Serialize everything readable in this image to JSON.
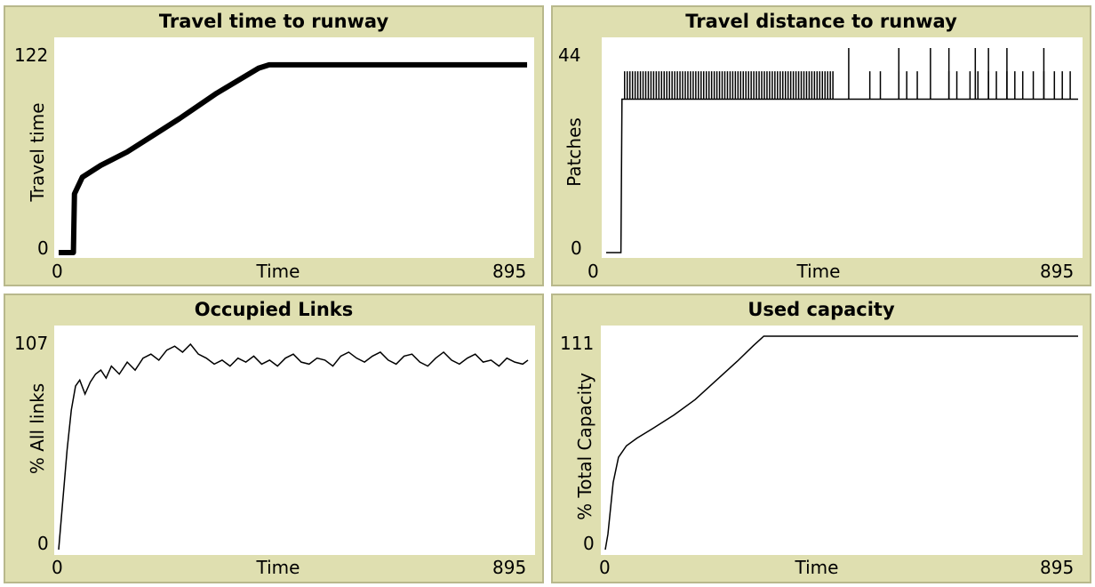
{
  "chart_data": [
    {
      "type": "line",
      "title": "Travel time to runway",
      "xlabel": "Time",
      "ylabel": "Travel time",
      "xlim": [
        0,
        895
      ],
      "ylim": [
        0,
        122
      ],
      "x_ticks": [
        "0",
        "895"
      ],
      "y_ticks": [
        "0",
        "122"
      ],
      "grid": false,
      "series": [
        {
          "color": "#000000",
          "band": 3,
          "x": [
            0,
            20,
            28,
            30,
            45,
            80,
            130,
            180,
            230,
            300,
            380,
            400,
            430,
            470,
            560,
            640,
            680,
            715,
            760,
            800,
            850,
            890
          ],
          "y": [
            0,
            0,
            0,
            35,
            45,
            52,
            60,
            70,
            80,
            95,
            110,
            112,
            112,
            112,
            112,
            112,
            112,
            112,
            112,
            112,
            112,
            112
          ]
        }
      ]
    },
    {
      "type": "line",
      "title": "Travel distance to runway",
      "xlabel": "Time",
      "ylabel": "Patches",
      "xlim": [
        0,
        895
      ],
      "ylim": [
        0,
        44
      ],
      "x_ticks": [
        "0",
        "895"
      ],
      "y_ticks": [
        "0",
        "44"
      ],
      "grid": false,
      "series": [
        {
          "color": "#000000",
          "x": [
            0,
            25,
            28,
            30,
            895
          ],
          "y": [
            0,
            0,
            0,
            33,
            33
          ],
          "spikes": [
            {
              "x": [
                35,
                430
              ],
              "y": 39,
              "step": 5
            },
            {
              "x": [
                490,
                895
              ],
              "y": 39,
              "positions": [
                500,
                520,
                555,
                570,
                590,
                650,
                665,
                690,
                705,
                725,
                740,
                760,
                775,
                790,
                810,
                830,
                850,
                865,
                880
              ]
            },
            {
              "x": [
                460,
                895
              ],
              "y": 44,
              "positions": [
                460,
                555,
                615,
                650,
                700,
                725,
                760,
                830
              ]
            }
          ]
        }
      ]
    },
    {
      "type": "line",
      "title": "Occupied Links",
      "xlabel": "Time",
      "ylabel": "% All links",
      "xlim": [
        0,
        895
      ],
      "ylim": [
        0,
        107
      ],
      "x_ticks": [
        "0",
        "895"
      ],
      "y_ticks": [
        "0",
        "107"
      ],
      "grid": false,
      "series": [
        {
          "color": "#000000",
          "x": [
            0,
            8,
            16,
            24,
            32,
            40,
            50,
            60,
            70,
            80,
            90,
            100,
            115,
            130,
            145,
            160,
            175,
            190,
            205,
            220,
            235,
            250,
            265,
            280,
            295,
            310,
            325,
            340,
            355,
            370,
            385,
            400,
            415,
            430,
            445,
            460,
            475,
            490,
            505,
            520,
            535,
            550,
            565,
            580,
            595,
            610,
            625,
            640,
            655,
            670,
            685,
            700,
            715,
            730,
            745,
            760,
            775,
            790,
            805,
            820,
            835,
            850,
            865,
            880,
            890
          ],
          "y": [
            0,
            25,
            50,
            70,
            82,
            85,
            78,
            84,
            88,
            90,
            86,
            92,
            88,
            94,
            90,
            96,
            98,
            95,
            100,
            102,
            99,
            103,
            98,
            96,
            93,
            95,
            92,
            96,
            94,
            97,
            93,
            95,
            92,
            96,
            98,
            94,
            93,
            96,
            95,
            92,
            97,
            99,
            96,
            94,
            97,
            99,
            95,
            93,
            97,
            98,
            94,
            92,
            96,
            99,
            95,
            93,
            96,
            98,
            94,
            95,
            92,
            96,
            94,
            93,
            95
          ]
        }
      ]
    },
    {
      "type": "line",
      "title": "Used capacity",
      "xlabel": "Time",
      "ylabel": "% Total Capacity",
      "xlim": [
        0,
        895
      ],
      "ylim": [
        0,
        111
      ],
      "x_ticks": [
        "0",
        "895"
      ],
      "y_ticks": [
        "0",
        "111"
      ],
      "grid": false,
      "series": [
        {
          "color": "#000000",
          "x": [
            0,
            5,
            15,
            25,
            40,
            60,
            90,
            130,
            170,
            210,
            250,
            280,
            300,
            320,
            400,
            500,
            600,
            650,
            700,
            800,
            895
          ],
          "y": [
            0,
            8,
            35,
            48,
            54,
            58,
            63,
            70,
            78,
            88,
            98,
            106,
            111,
            111,
            111,
            111,
            111,
            111,
            111,
            111,
            111
          ]
        }
      ]
    }
  ]
}
